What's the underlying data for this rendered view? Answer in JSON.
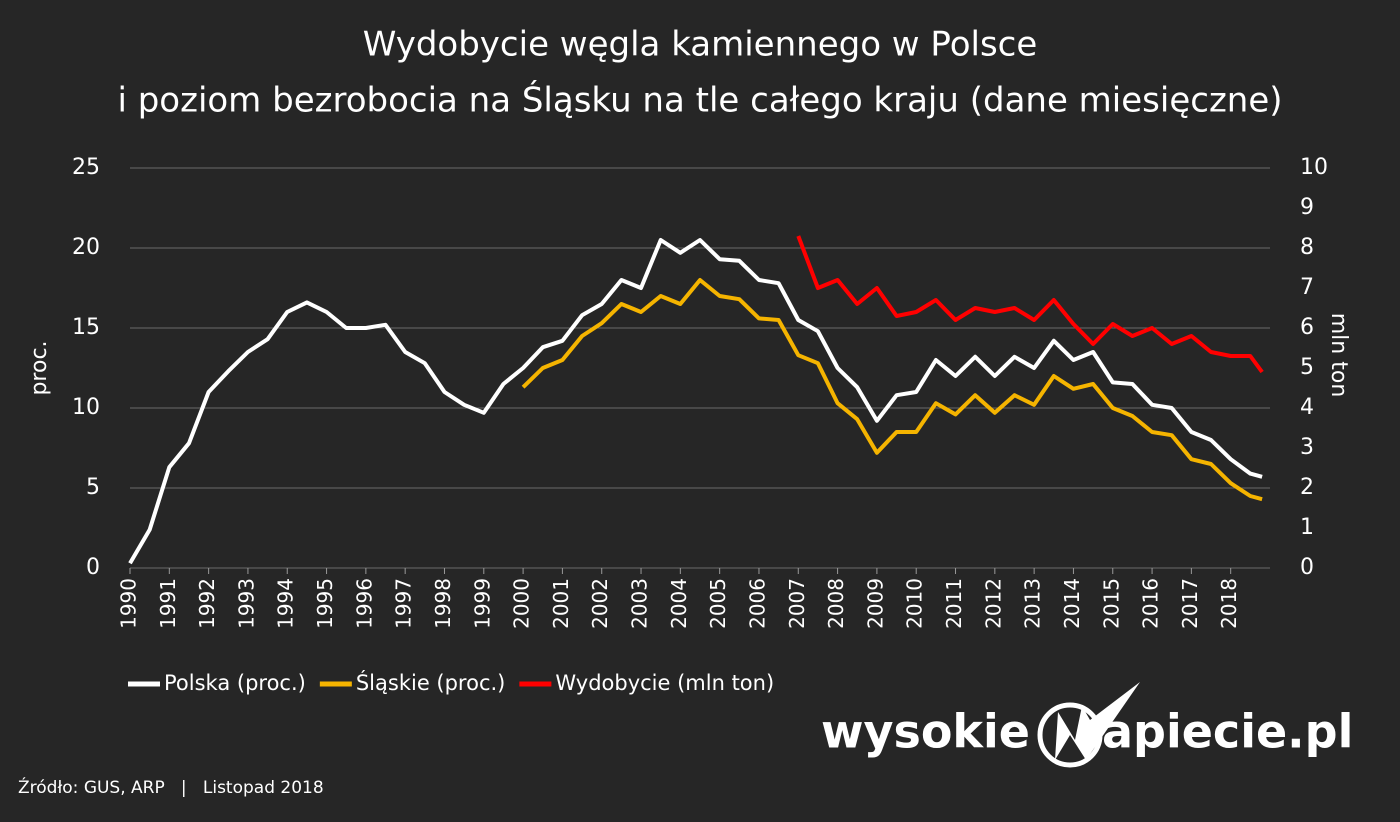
{
  "chart_data": {
    "type": "line",
    "title": [
      "Wydobycie węgla kamiennego w Polsce",
      "i poziom bezrobocia na Śląsku na tle całego kraju (dane miesięczne)"
    ],
    "y_label": "proc.",
    "y2_label": "mln ton",
    "x": [
      1990,
      1990.5,
      1991,
      1991.5,
      1992,
      1992.5,
      1993,
      1993.5,
      1994,
      1994.5,
      1995,
      1995.5,
      1996,
      1996.5,
      1997,
      1997.5,
      1998,
      1998.5,
      1999,
      1999.5,
      2000,
      2000.5,
      2001,
      2001.5,
      2002,
      2002.5,
      2003,
      2003.5,
      2004,
      2004.5,
      2005,
      2005.5,
      2006,
      2006.5,
      2007,
      2007.5,
      2008,
      2008.5,
      2009,
      2009.5,
      2010,
      2010.5,
      2011,
      2011.5,
      2012,
      2012.5,
      2013,
      2013.5,
      2014,
      2014.5,
      2015,
      2015.5,
      2016,
      2016.5,
      2017,
      2017.5,
      2018,
      2018.5,
      2018.8
    ],
    "xlim": [
      1990,
      2019
    ],
    "xticks": [
      1990,
      1991,
      1992,
      1993,
      1994,
      1995,
      1996,
      1997,
      1998,
      1999,
      2000,
      2001,
      2002,
      2003,
      2004,
      2005,
      2006,
      2007,
      2008,
      2009,
      2010,
      2011,
      2012,
      2013,
      2014,
      2015,
      2016,
      2017,
      2018
    ],
    "ylim": [
      0,
      25
    ],
    "yticks": [
      0,
      5,
      10,
      15,
      20,
      25
    ],
    "y2lim": [
      0,
      10
    ],
    "y2ticks": [
      0,
      1,
      2,
      3,
      4,
      5,
      6,
      7,
      8,
      9,
      10
    ],
    "grid": true,
    "series": [
      {
        "name": "Polska (proc.)",
        "color": "#ffffff",
        "values": [
          0.3,
          2.4,
          6.3,
          7.8,
          11.0,
          12.3,
          13.5,
          14.3,
          16.0,
          16.6,
          16.0,
          15.0,
          15.0,
          15.2,
          13.5,
          12.8,
          11.0,
          10.2,
          9.7,
          11.5,
          12.5,
          13.8,
          14.2,
          15.8,
          16.5,
          18.0,
          17.5,
          20.5,
          19.7,
          20.5,
          19.3,
          19.2,
          18.0,
          17.8,
          15.5,
          14.8,
          12.5,
          11.3,
          9.2,
          10.8,
          11.0,
          13.0,
          12.0,
          13.2,
          12.0,
          13.2,
          12.5,
          14.2,
          13.0,
          13.5,
          11.6,
          11.5,
          10.2,
          10.0,
          8.5,
          8.0,
          6.8,
          5.9,
          5.7
        ]
      },
      {
        "name": "Śląskie (proc.)",
        "color": "#f5b400",
        "values": [
          null,
          null,
          null,
          null,
          null,
          null,
          null,
          null,
          null,
          null,
          null,
          null,
          null,
          null,
          null,
          null,
          null,
          null,
          null,
          null,
          11.3,
          12.5,
          13.0,
          14.5,
          15.3,
          16.5,
          16.0,
          17.0,
          16.5,
          18.0,
          17.0,
          16.8,
          15.6,
          15.5,
          13.3,
          12.8,
          10.3,
          9.3,
          7.2,
          8.5,
          8.5,
          10.3,
          9.6,
          10.8,
          9.7,
          10.8,
          10.2,
          12.0,
          11.2,
          11.5,
          10.0,
          9.5,
          8.5,
          8.3,
          6.8,
          6.5,
          5.3,
          4.5,
          4.3
        ]
      },
      {
        "name": "Wydobycie (mln ton)",
        "color": "#ff0000",
        "axis": "y2",
        "values": [
          null,
          null,
          null,
          null,
          null,
          null,
          null,
          null,
          null,
          null,
          null,
          null,
          null,
          null,
          null,
          null,
          null,
          null,
          null,
          null,
          null,
          null,
          null,
          null,
          null,
          null,
          null,
          null,
          null,
          null,
          null,
          null,
          null,
          null,
          8.3,
          7.0,
          7.2,
          6.6,
          7.0,
          6.3,
          6.4,
          6.7,
          6.2,
          6.5,
          6.4,
          6.5,
          6.2,
          6.7,
          6.1,
          5.6,
          6.1,
          5.8,
          6.0,
          5.6,
          5.8,
          5.4,
          5.3,
          5.3,
          4.9
        ]
      }
    ],
    "source": "Źródło: GUS, ARP   |   Listopad 2018",
    "logo": [
      "wysokie",
      "apiecie.pl"
    ]
  }
}
